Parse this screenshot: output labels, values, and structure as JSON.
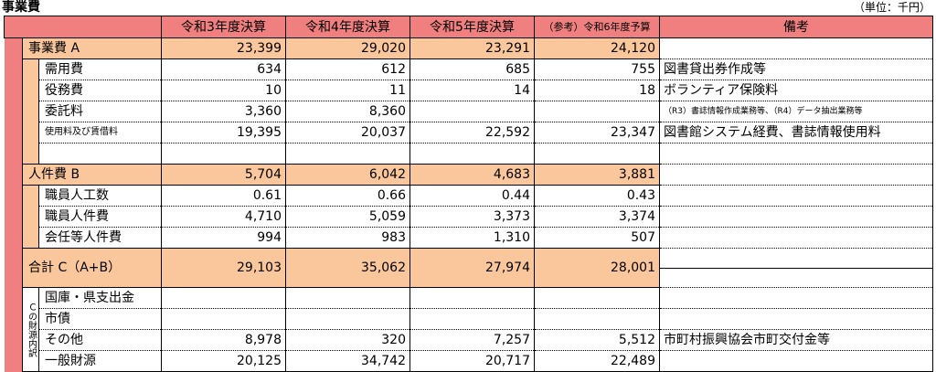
{
  "title": "事業費",
  "unit": "（単位：千円）",
  "headers": {
    "r3": "令和3年度決算",
    "r4": "令和4年度決算",
    "r5": "令和5年度決算",
    "r6": "（参考）令和6年度予算",
    "remarks": "備考"
  },
  "jigyohi": {
    "label": "事業費 A",
    "values": [
      "23,399",
      "29,020",
      "23,291",
      "24,120"
    ],
    "remarks": ""
  },
  "jigyohi_items": [
    {
      "label": "需用費",
      "values": [
        "634",
        "612",
        "685",
        "755"
      ],
      "remarks": "図書貸出券作成等"
    },
    {
      "label": "役務費",
      "values": [
        "10",
        "11",
        "14",
        "18"
      ],
      "remarks": "ボランティア保険料"
    },
    {
      "label": "委託料",
      "values": [
        "3,360",
        "8,360",
        "",
        ""
      ],
      "remarks": "（R3）書誌情報作成業務等、（R4）データ抽出業務等"
    },
    {
      "label": "使用料及び賃借料",
      "values": [
        "19,395",
        "20,037",
        "22,592",
        "23,347"
      ],
      "remarks": "図書館システム経費、書誌情報使用料"
    },
    {
      "label": "",
      "values": [
        "",
        "",
        "",
        ""
      ],
      "remarks": ""
    }
  ],
  "jinkenhi": {
    "label": "人件費 B",
    "values": [
      "5,704",
      "6,042",
      "4,683",
      "3,881"
    ],
    "remarks": ""
  },
  "jinkenhi_items": [
    {
      "label": "職員人工数",
      "values": [
        "0.61",
        "0.66",
        "0.44",
        "0.43"
      ],
      "remarks": ""
    },
    {
      "label": "職員人件費",
      "values": [
        "4,710",
        "5,059",
        "3,373",
        "3,374"
      ],
      "remarks": ""
    },
    {
      "label": "会任等人件費",
      "values": [
        "994",
        "983",
        "1,310",
        "507"
      ],
      "remarks": ""
    }
  ],
  "total": {
    "label": "合計 C（A+B）",
    "values": [
      "29,103",
      "35,062",
      "27,974",
      "28,001"
    ],
    "remarks": ""
  },
  "zaigen_label": "Ｃの財源内訳",
  "zaigen_items": [
    {
      "label": "国庫・県支出金",
      "values": [
        "",
        "",
        "",
        ""
      ],
      "remarks": ""
    },
    {
      "label": "市債",
      "values": [
        "",
        "",
        "",
        ""
      ],
      "remarks": ""
    },
    {
      "label": "その他",
      "values": [
        "8,978",
        "320",
        "7,257",
        "5,512"
      ],
      "remarks": "市町村振興協会市町交付金等"
    },
    {
      "label": "一般財源",
      "values": [
        "20,125",
        "34,742",
        "20,717",
        "22,489"
      ],
      "remarks": ""
    }
  ]
}
